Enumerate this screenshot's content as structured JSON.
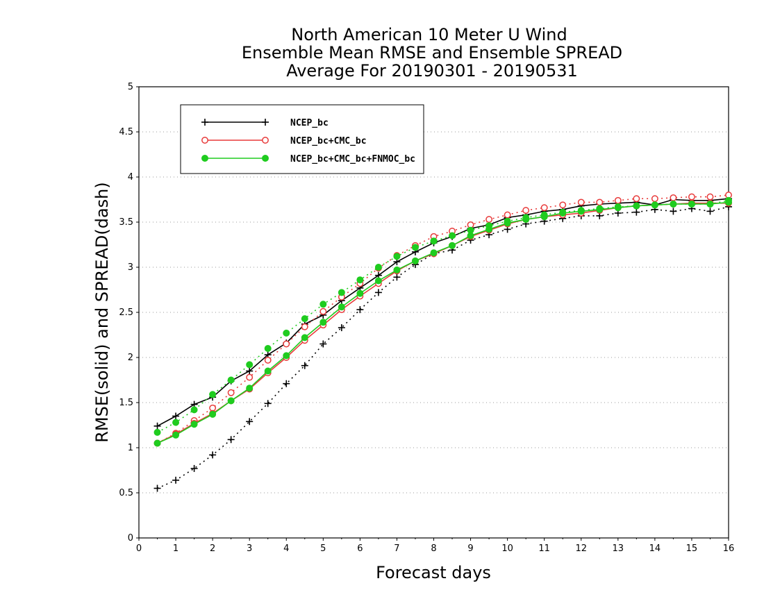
{
  "chart_data": {
    "type": "line",
    "title_lines": [
      "North American 10 Meter U Wind",
      "Ensemble Mean RMSE and Ensemble SPREAD",
      "Average For 20190301 - 20190531"
    ],
    "xlabel": "Forecast days",
    "ylabel": "RMSE(solid) and SPREAD(dash)",
    "xlim": [
      0,
      16
    ],
    "ylim": [
      0,
      5
    ],
    "x_ticks": [
      "0",
      "1",
      "2",
      "3",
      "4",
      "5",
      "6",
      "7",
      "8",
      "9",
      "10",
      "11",
      "12",
      "13",
      "14",
      "15",
      "16"
    ],
    "y_ticks": [
      "0",
      "0.5",
      "1",
      "1.5",
      "2",
      "2.5",
      "3",
      "3.5",
      "4",
      "4.5",
      "5"
    ],
    "grid": "dotted horizontal",
    "legend_position": "top-left",
    "x": [
      0.5,
      1,
      1.5,
      2,
      2.5,
      3,
      3.5,
      4,
      4.5,
      5,
      5.5,
      6,
      6.5,
      7,
      7.5,
      8,
      8.5,
      9,
      9.5,
      10,
      10.5,
      11,
      11.5,
      12,
      12.5,
      13,
      13.5,
      14,
      14.5,
      15,
      15.5,
      16
    ],
    "series": [
      {
        "name": "NCEP_bc",
        "color": "#000000",
        "marker": "plus",
        "rmse": [
          1.24,
          1.35,
          1.48,
          1.56,
          1.74,
          1.85,
          2.03,
          2.16,
          2.37,
          2.47,
          2.63,
          2.77,
          2.91,
          3.06,
          3.17,
          3.27,
          3.34,
          3.43,
          3.47,
          3.55,
          3.58,
          3.62,
          3.64,
          3.68,
          3.7,
          3.71,
          3.72,
          3.69,
          3.75,
          3.74,
          3.74,
          3.76
        ],
        "spread": [
          0.55,
          0.64,
          0.77,
          0.92,
          1.09,
          1.29,
          1.49,
          1.71,
          1.91,
          2.15,
          2.33,
          2.53,
          2.72,
          2.89,
          3.03,
          3.15,
          3.19,
          3.3,
          3.36,
          3.42,
          3.48,
          3.51,
          3.54,
          3.57,
          3.57,
          3.6,
          3.61,
          3.64,
          3.62,
          3.65,
          3.62,
          3.67
        ]
      },
      {
        "name": "NCEP_bc+CMC_bc",
        "color": "#e83a3a",
        "marker": "open-circle",
        "rmse": [
          1.05,
          1.15,
          1.27,
          1.38,
          1.52,
          1.65,
          1.83,
          2.0,
          2.19,
          2.36,
          2.53,
          2.68,
          2.82,
          2.96,
          3.07,
          3.15,
          3.24,
          3.34,
          3.41,
          3.48,
          3.53,
          3.56,
          3.58,
          3.6,
          3.63,
          3.66,
          3.68,
          3.69,
          3.7,
          3.71,
          3.71,
          3.71
        ],
        "spread": [
          1.05,
          1.16,
          1.3,
          1.44,
          1.61,
          1.78,
          1.97,
          2.15,
          2.34,
          2.51,
          2.67,
          2.82,
          2.99,
          3.13,
          3.24,
          3.34,
          3.4,
          3.47,
          3.53,
          3.58,
          3.63,
          3.66,
          3.69,
          3.72,
          3.72,
          3.74,
          3.76,
          3.76,
          3.77,
          3.78,
          3.78,
          3.8
        ]
      },
      {
        "name": "NCEP_bc+CMC_bc+FNMOC_bc",
        "color": "#1fcc1f",
        "marker": "filled-circle",
        "rmse": [
          1.05,
          1.14,
          1.26,
          1.37,
          1.52,
          1.66,
          1.85,
          2.02,
          2.22,
          2.39,
          2.56,
          2.71,
          2.85,
          2.97,
          3.07,
          3.16,
          3.24,
          3.35,
          3.42,
          3.49,
          3.53,
          3.56,
          3.6,
          3.62,
          3.64,
          3.66,
          3.68,
          3.69,
          3.7,
          3.7,
          3.7,
          3.72
        ],
        "spread": [
          1.17,
          1.28,
          1.42,
          1.59,
          1.75,
          1.92,
          2.1,
          2.27,
          2.43,
          2.59,
          2.72,
          2.86,
          3.0,
          3.12,
          3.22,
          3.29,
          3.35,
          3.41,
          3.46,
          3.51,
          3.55,
          3.58,
          3.61,
          3.63,
          3.65,
          3.67,
          3.68,
          3.69,
          3.7,
          3.7,
          3.7,
          3.74
        ]
      }
    ]
  }
}
